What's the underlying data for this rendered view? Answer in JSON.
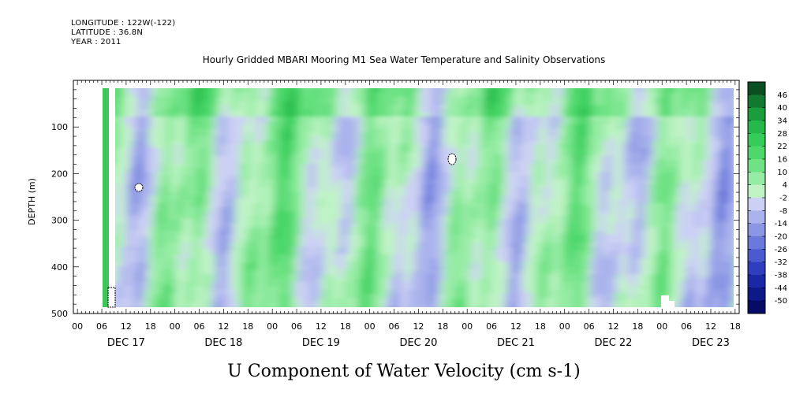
{
  "header": {
    "longitude": "LONGITUDE : 122W(-122)",
    "latitude": "LATITUDE : 36.8N",
    "year": "YEAR : 2011"
  },
  "chart_data": {
    "type": "heatmap",
    "title": "Hourly Gridded MBARI Mooring M1 Sea Water Temperature and Salinity Observations",
    "xlabel": "U Component of Water Velocity (cm s-1)",
    "ylabel": "DEPTH (m)",
    "x_unit": "hours since DEC 17 00",
    "xlim": [
      -1,
      163
    ],
    "ylim": [
      500,
      0
    ],
    "y_ticks": [
      100,
      200,
      300,
      400,
      500
    ],
    "x_hour_ticks": [
      "00",
      "06",
      "12",
      "18",
      "00",
      "06",
      "12",
      "18",
      "00",
      "06",
      "12",
      "18",
      "00",
      "06",
      "12",
      "18",
      "00",
      "06",
      "12",
      "18",
      "00",
      "06",
      "12",
      "18",
      "00",
      "06",
      "12",
      "18"
    ],
    "x_day_labels": [
      "DEC 17",
      "DEC 18",
      "DEC 19",
      "DEC 20",
      "DEC 21",
      "DEC 22",
      "DEC 23"
    ],
    "colorbar_levels": [
      46,
      40,
      34,
      28,
      22,
      16,
      10,
      4,
      -2,
      -8,
      -14,
      -20,
      -26,
      -32,
      -38,
      -44,
      -50
    ],
    "colorbar_colors": [
      "#0a4f22",
      "#127a30",
      "#1a9e3c",
      "#26b84a",
      "#36cc5a",
      "#4ed86c",
      "#6ee284",
      "#96eca4",
      "#bff3c6",
      "#ccd0f4",
      "#aab3ec",
      "#8b96e4",
      "#6b78dc",
      "#4c5ad0",
      "#2f3dbf",
      "#1b28a6",
      "#0f1888",
      "#060c66"
    ],
    "depth_profile_values": [
      {
        "depth": 20,
        "u": 14
      },
      {
        "depth": 100,
        "u": 8
      },
      {
        "depth": 200,
        "u": 4
      },
      {
        "depth": 300,
        "u": 2
      },
      {
        "depth": 400,
        "u": 4
      },
      {
        "depth": 480,
        "u": 2
      }
    ],
    "time_series_near_surface": [
      {
        "hour": 6,
        "u": 18
      },
      {
        "hour": 18,
        "u": 12
      },
      {
        "hour": 30,
        "u": 2
      },
      {
        "hour": 42,
        "u": -4
      },
      {
        "hour": 54,
        "u": 6
      },
      {
        "hour": 66,
        "u": -8
      },
      {
        "hour": 78,
        "u": 4
      },
      {
        "hour": 90,
        "u": -10
      },
      {
        "hour": 102,
        "u": 8
      },
      {
        "hour": 114,
        "u": -12
      },
      {
        "hour": 126,
        "u": 6
      },
      {
        "hour": 138,
        "u": -14
      },
      {
        "hour": 150,
        "u": -10
      },
      {
        "hour": 162,
        "u": 8
      }
    ]
  }
}
